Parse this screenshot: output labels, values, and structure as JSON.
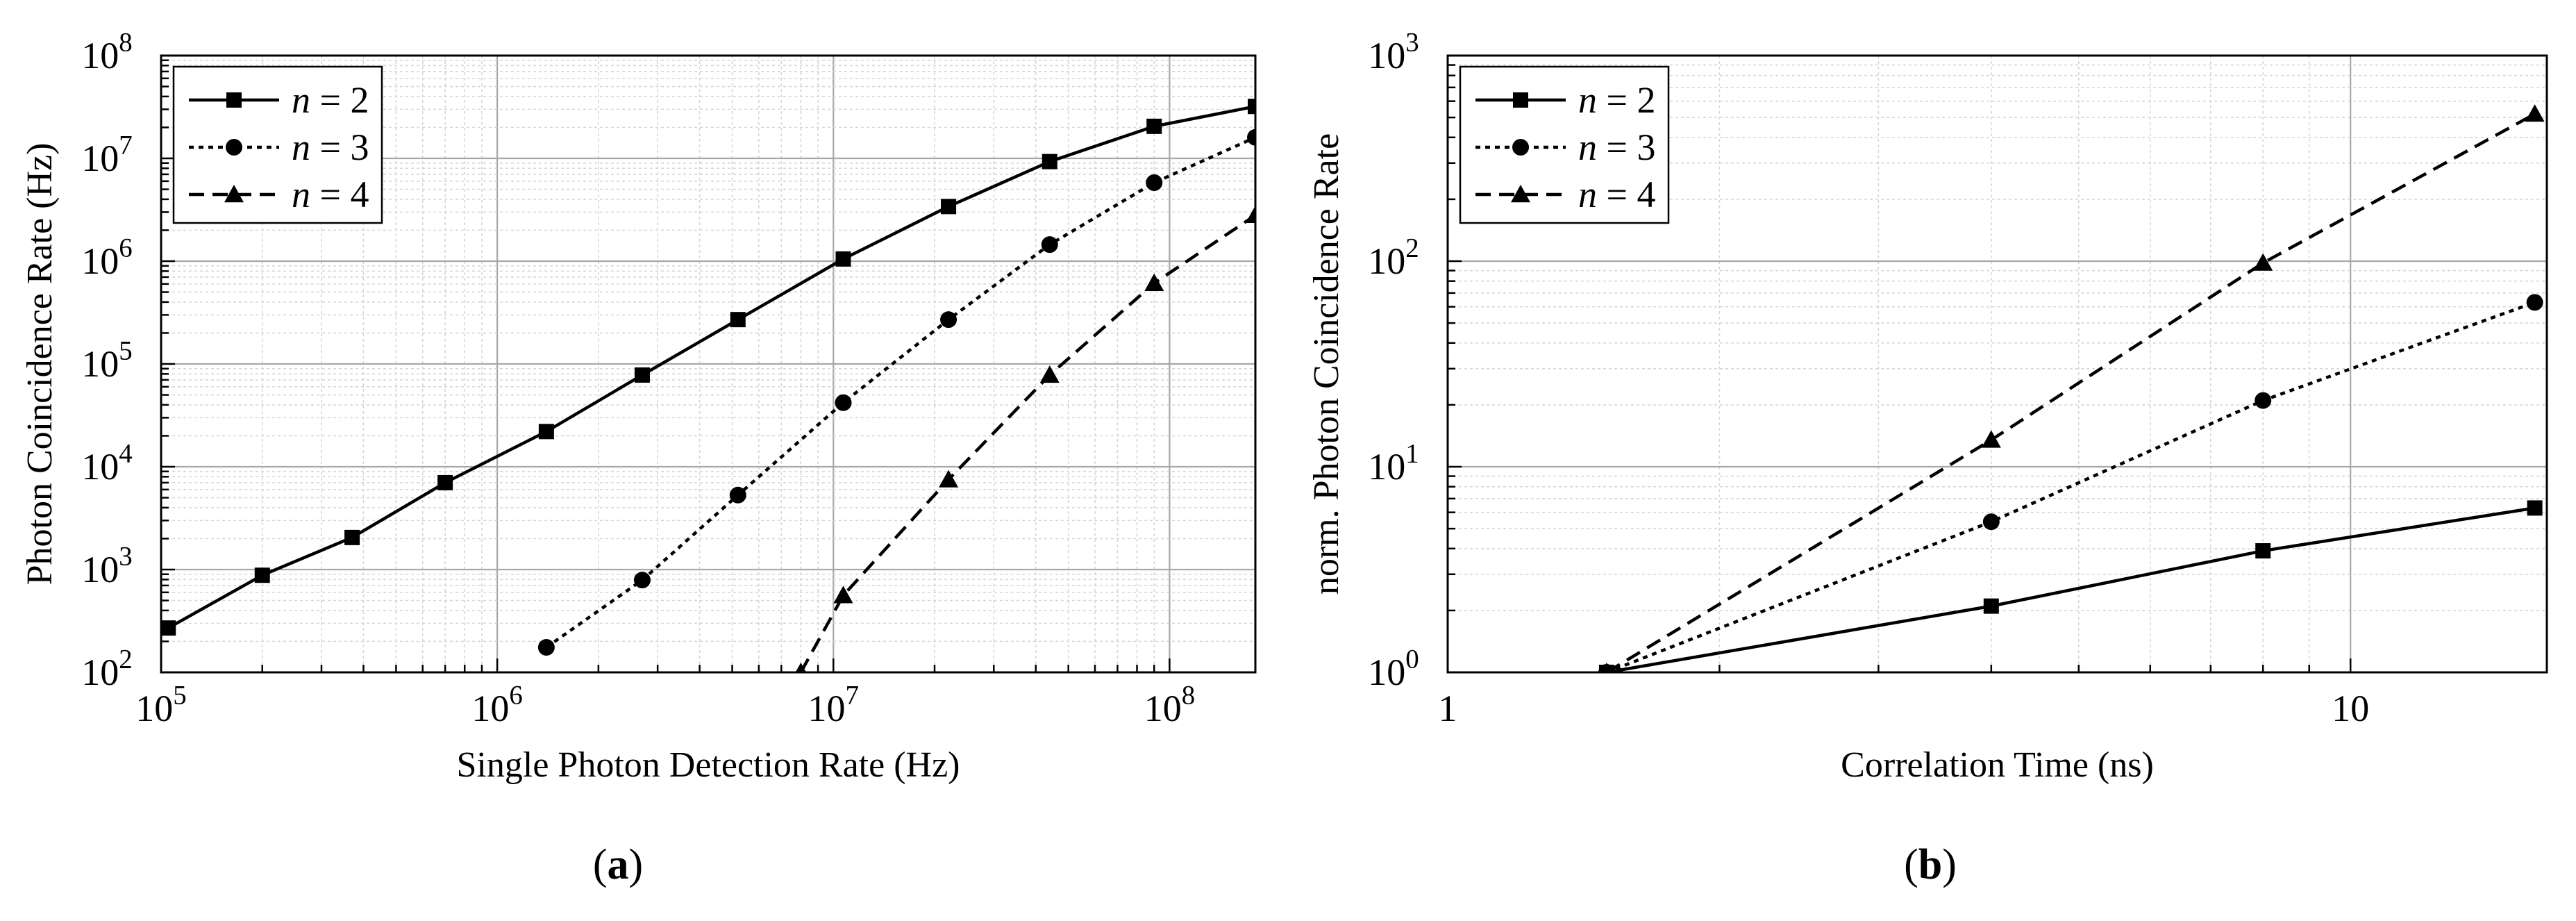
{
  "panel_labels": {
    "a": "a",
    "b": "b"
  },
  "chart_data": [
    {
      "type": "line",
      "xlabel": "Single Photon Detection Rate (Hz)",
      "ylabel": "Photon Coincidence Rate (Hz)",
      "xscale": "log",
      "yscale": "log",
      "xlim": [
        100000,
        180000000
      ],
      "ylim": [
        100,
        100000000
      ],
      "x_ticks": [
        100000,
        1000000,
        10000000,
        100000000
      ],
      "x_tick_labels": [
        [
          "10",
          "5"
        ],
        [
          "10",
          "6"
        ],
        [
          "10",
          "7"
        ],
        [
          "10",
          "8"
        ]
      ],
      "y_ticks": [
        100,
        1000,
        10000,
        100000,
        1000000,
        10000000,
        100000000
      ],
      "y_tick_labels": [
        [
          "10",
          "2"
        ],
        [
          "10",
          "3"
        ],
        [
          "10",
          "4"
        ],
        [
          "10",
          "5"
        ],
        [
          "10",
          "6"
        ],
        [
          "10",
          "7"
        ],
        [
          "10",
          "8"
        ]
      ],
      "grid": true,
      "legend_position": "top-left",
      "series": [
        {
          "name": "n = 2",
          "var": "n",
          "eq": " = 2",
          "marker": "square",
          "dash": "solid",
          "points": [
            [
              105000,
              270
            ],
            [
              200000,
              880
            ],
            [
              370000,
              2050
            ],
            [
              700000,
              7000
            ],
            [
              1400000,
              22000
            ],
            [
              2700000,
              78000
            ],
            [
              5200000,
              270000
            ],
            [
              10700000,
              1050000
            ],
            [
              22000000,
              3400000
            ],
            [
              44000000,
              9300000
            ],
            [
              90000000,
              20500000
            ],
            [
              180000000,
              32000000
            ]
          ]
        },
        {
          "name": "n = 3",
          "var": "n",
          "eq": " = 3",
          "marker": "circle",
          "dash": "dotted",
          "points": [
            [
              1400000,
              175
            ],
            [
              2700000,
              790
            ],
            [
              5200000,
              5300
            ],
            [
              10700000,
              42000
            ],
            [
              22000000,
              270000
            ],
            [
              44000000,
              1450000
            ],
            [
              90000000,
              5800000
            ],
            [
              180000000,
              16000000
            ]
          ]
        },
        {
          "name": "n = 4",
          "var": "n",
          "eq": " = 4",
          "marker": "triangle",
          "dash": "dashed",
          "points": [
            [
              8000000,
              100
            ],
            [
              10700000,
              560
            ],
            [
              22000000,
              7500
            ],
            [
              44000000,
              78000
            ],
            [
              90000000,
              610000
            ],
            [
              180000000,
              2800000
            ]
          ]
        }
      ]
    },
    {
      "type": "line",
      "xlabel": "Correlation Time (ns)",
      "ylabel": "norm. Photon Coincidence Rate",
      "xscale": "log",
      "yscale": "log",
      "xlim": [
        1,
        16.5
      ],
      "ylim": [
        1,
        1000
      ],
      "x_ticks": [
        1,
        10
      ],
      "x_tick_labels": [
        [
          "1",
          ""
        ],
        [
          "10",
          ""
        ]
      ],
      "y_ticks": [
        1,
        10,
        100,
        1000
      ],
      "y_tick_labels": [
        [
          "10",
          "0"
        ],
        [
          "10",
          "1"
        ],
        [
          "10",
          "2"
        ],
        [
          "10",
          "3"
        ]
      ],
      "grid": true,
      "legend_position": "top-left",
      "series": [
        {
          "name": "n = 2",
          "var": "n",
          "eq": " = 2",
          "marker": "square",
          "dash": "solid",
          "points": [
            [
              1.5,
              1
            ],
            [
              4.0,
              2.1
            ],
            [
              8.0,
              3.9
            ],
            [
              16.0,
              6.3
            ]
          ]
        },
        {
          "name": "n = 3",
          "var": "n",
          "eq": " = 3",
          "marker": "circle",
          "dash": "dotted",
          "points": [
            [
              1.5,
              1
            ],
            [
              4.0,
              5.4
            ],
            [
              8.0,
              21
            ],
            [
              16.0,
              63
            ]
          ]
        },
        {
          "name": "n = 4",
          "var": "n",
          "eq": " = 4",
          "marker": "triangle",
          "dash": "dashed",
          "points": [
            [
              1.5,
              1
            ],
            [
              4.0,
              13.5
            ],
            [
              8.0,
              98
            ],
            [
              16.0,
              520
            ]
          ]
        }
      ]
    }
  ]
}
